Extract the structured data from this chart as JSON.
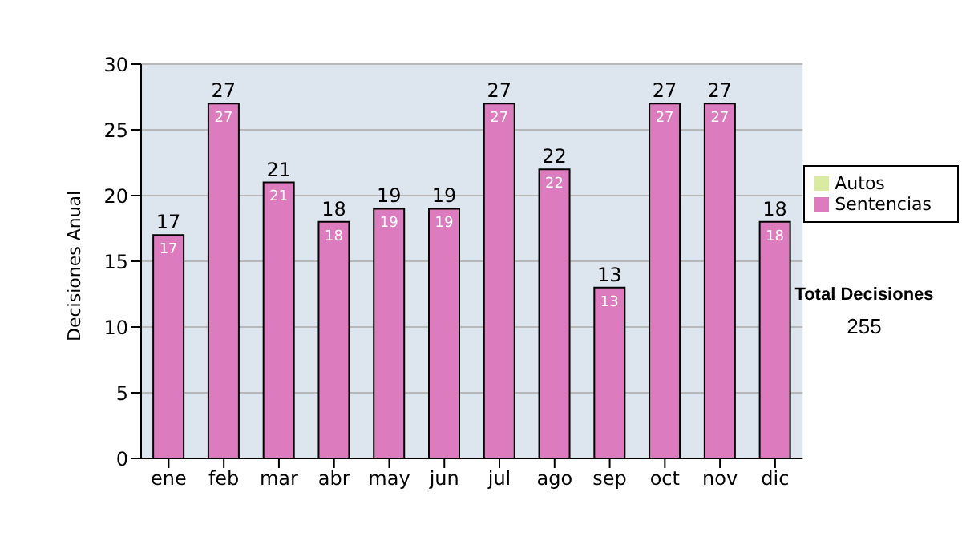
{
  "chart_data": {
    "type": "bar",
    "ylabel": "Decisiones Anual",
    "categories": [
      "ene",
      "feb",
      "mar",
      "abr",
      "may",
      "jun",
      "jul",
      "ago",
      "sep",
      "oct",
      "nov",
      "dic"
    ],
    "series": [
      {
        "name": "Sentencias",
        "color": "#dc7cbf",
        "values": [
          17,
          27,
          21,
          18,
          19,
          19,
          27,
          22,
          13,
          27,
          27,
          18
        ]
      },
      {
        "name": "Autos",
        "color": "#d9eba0",
        "values": [
          null,
          null,
          null,
          null,
          null,
          null,
          null,
          null,
          null,
          null,
          null,
          null
        ]
      }
    ],
    "stacked": true,
    "data_labels": true,
    "totals": [
      "17",
      "27",
      "21",
      "18",
      "19",
      "19",
      "27",
      "22",
      "13",
      "27",
      "27",
      "18"
    ],
    "ylim": [
      0,
      30
    ],
    "yticks": [
      0,
      5,
      10,
      15,
      20,
      25,
      30
    ],
    "grid": "y",
    "legend": "right",
    "annotations": [
      "Total Decisiones",
      "255"
    ]
  }
}
